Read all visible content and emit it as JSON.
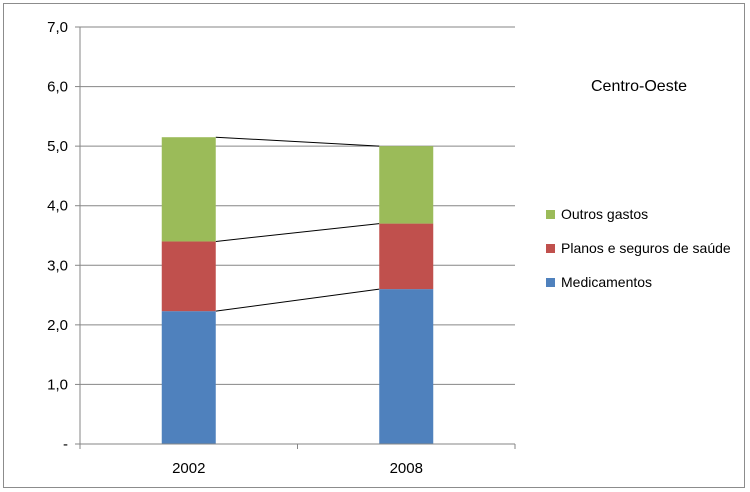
{
  "chart_data": {
    "type": "bar",
    "stacked": true,
    "title": "Centro-Oeste",
    "categories": [
      "2002",
      "2008"
    ],
    "series": [
      {
        "name": "Medicamentos",
        "values": [
          2.23,
          2.6
        ],
        "color": "#4f81bd"
      },
      {
        "name": "Planos e seguros de saúde",
        "values": [
          1.17,
          1.1
        ],
        "color": "#c0504d"
      },
      {
        "name": "Outros gastos",
        "values": [
          1.75,
          1.3
        ],
        "color": "#9bbb59"
      }
    ],
    "ylim": [
      0,
      7
    ],
    "yticks": [
      0,
      1,
      2,
      3,
      4,
      5,
      6,
      7
    ],
    "ytick_labels": [
      "-",
      "1,0",
      "2,0",
      "3,0",
      "4,0",
      "5,0",
      "6,0",
      "7,0"
    ],
    "grid": true,
    "legend_position": "right",
    "legend_order": [
      "Outros gastos",
      "Planos e seguros de saúde",
      "Medicamentos"
    ],
    "series_lines": true
  }
}
